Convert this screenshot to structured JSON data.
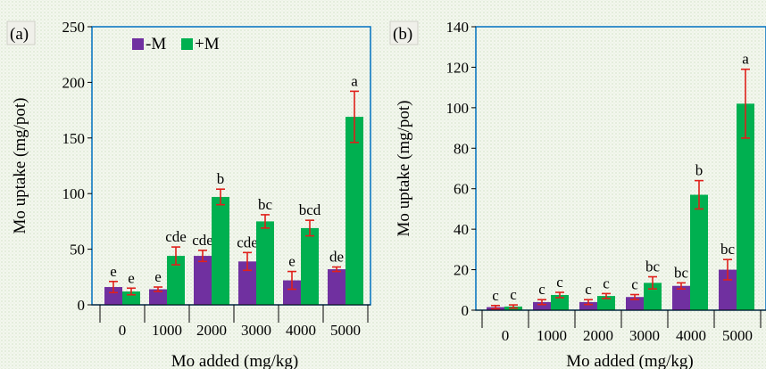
{
  "chart_data": [
    {
      "type": "bar",
      "panel_label": "(a)",
      "categories": [
        "0",
        "1000",
        "2000",
        "3000",
        "4000",
        "5000"
      ],
      "series": [
        {
          "name": "-M",
          "color": "#7030a0",
          "values": [
            16,
            14,
            44,
            39,
            22,
            32
          ],
          "errors": [
            5,
            2,
            5,
            8,
            8,
            2
          ],
          "letters": [
            "e",
            "e",
            "cde",
            "cde",
            "e",
            "de"
          ]
        },
        {
          "name": "+M",
          "color": "#00b050",
          "values": [
            12,
            44,
            97,
            75,
            69,
            169
          ],
          "errors": [
            3,
            8,
            7,
            6,
            7,
            23
          ],
          "letters": [
            "e",
            "cde",
            "b",
            "bc",
            "bcd",
            "a"
          ]
        }
      ],
      "xlabel": "Mo added (mg/kg)",
      "ylabel": "Mo uptake (mg/pot)",
      "ylim": [
        0,
        250
      ],
      "yticks": [
        0,
        50,
        100,
        150,
        200,
        250
      ],
      "legend": "top-left",
      "grid": false,
      "frame_color": "#0070c0",
      "error_color": "#e0201b"
    },
    {
      "type": "bar",
      "panel_label": "(b)",
      "categories": [
        "0",
        "1000",
        "2000",
        "3000",
        "4000",
        "5000"
      ],
      "series": [
        {
          "name": "-M",
          "color": "#7030a0",
          "values": [
            1.5,
            4,
            4,
            6.5,
            12,
            20
          ],
          "errors": [
            0.8,
            1.2,
            1.2,
            1.2,
            1.5,
            5
          ],
          "letters": [
            "c",
            "c",
            "c",
            "c",
            "bc",
            "bc"
          ]
        },
        {
          "name": "+M",
          "color": "#00b050",
          "values": [
            1.8,
            7.5,
            7,
            13.5,
            57,
            102
          ],
          "errors": [
            0.8,
            1.3,
            1.2,
            3,
            7,
            17
          ],
          "letters": [
            "c",
            "c",
            "c",
            "bc",
            "b",
            "a"
          ]
        }
      ],
      "xlabel": "Mo added (mg/kg)",
      "ylabel": "Mo uptake (mg/pot)",
      "ylim": [
        0,
        140
      ],
      "yticks": [
        0,
        20,
        40,
        60,
        80,
        100,
        120,
        140
      ],
      "legend": "none",
      "grid": false,
      "frame_color": "#0070c0",
      "error_color": "#e0201b"
    }
  ]
}
